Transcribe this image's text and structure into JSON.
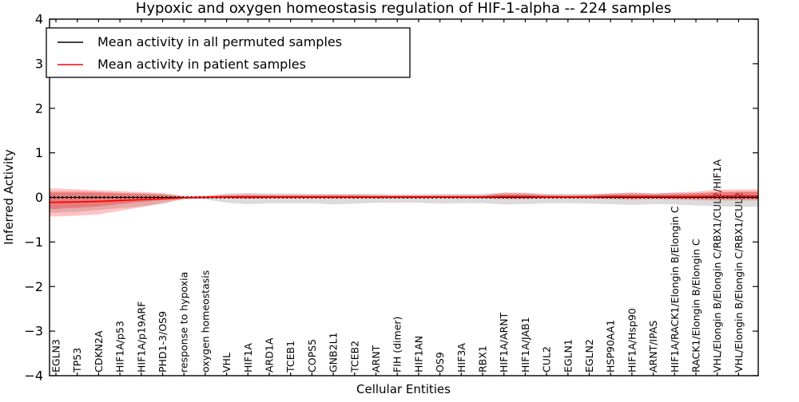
{
  "chart_data": {
    "type": "line",
    "title": "Hypoxic and oxygen homeostasis regulation of HIF-1-alpha -- 224 samples",
    "xlabel": "Cellular Entities",
    "ylabel": "Inferred Activity",
    "ylim": [
      -4,
      4
    ],
    "yticks": [
      4,
      3,
      2,
      1,
      0,
      -1,
      -2,
      -3,
      -4
    ],
    "ytick_labels": [
      "4",
      "3",
      "2",
      "1",
      "0",
      "−1",
      "−2",
      "−3",
      "−4"
    ],
    "legend_position": "upper left",
    "grid": false,
    "categories": [
      "EGLN3",
      "TP53",
      "CDKN2A",
      "HIF1A/p53",
      "HIF1A/p19ARF",
      "PHD1-3/OS9",
      "response to hypoxia",
      "oxygen homeostasis",
      "VHL",
      "HIF1A",
      "ARD1A",
      "TCEB1",
      "COPS5",
      "GNB2L1",
      "TCEB2",
      "ARNT",
      "FIH (dimer)",
      "HIF1AN",
      "OS9",
      "HIF3A",
      "RBX1",
      "HIF1A/ARNT",
      "HIF1A/JAB1",
      "CUL2",
      "EGLN1",
      "EGLN2",
      "HSP90AA1",
      "HIF1A/Hsp90",
      "ARNT/IPAS",
      "HIF1A/RACK1/Elongin B/Elongin C",
      "RACK1/Elongin B/Elongin C",
      "VHL/Elongin B/Elongin C/RBX1/CUL2/HIF1A",
      "VHL/Elongin B/Elongin C/RBX1/CUL2"
    ],
    "series": [
      {
        "name": "Mean activity in all permuted samples",
        "color": "#000000",
        "values": [
          0,
          0,
          0,
          0,
          0,
          0,
          0,
          0,
          0,
          0,
          0,
          0,
          0,
          0,
          0,
          0,
          0,
          0,
          0,
          0,
          0,
          0,
          0,
          0,
          0,
          0,
          0,
          0,
          0,
          0,
          0,
          0,
          0
        ]
      },
      {
        "name": "Mean activity in patient samples",
        "color": "#ff0000",
        "values": [
          -0.11,
          -0.1,
          -0.09,
          -0.07,
          -0.05,
          -0.03,
          -0.01,
          0.0,
          0.01,
          0.01,
          0.01,
          0.01,
          0.01,
          0.01,
          0.01,
          0.01,
          0.01,
          0.01,
          0.01,
          0.01,
          0.01,
          0.02,
          0.02,
          0.01,
          0.01,
          0.01,
          0.02,
          0.02,
          0.02,
          0.02,
          0.02,
          0.03,
          0.03
        ]
      }
    ],
    "bands": [
      {
        "name": "permuted-samples-spread",
        "color": "rgba(127,127,127,0.28)",
        "upper": [
          0.1,
          0.1,
          0.1,
          0.09,
          0.09,
          0.08,
          0.02,
          0.03,
          0.09,
          0.1,
          0.09,
          0.09,
          0.08,
          0.08,
          0.08,
          0.08,
          0.07,
          0.07,
          0.08,
          0.08,
          0.08,
          0.1,
          0.1,
          0.08,
          0.08,
          0.08,
          0.09,
          0.1,
          0.09,
          0.1,
          0.1,
          0.11,
          0.12
        ],
        "lower": [
          -0.34,
          -0.32,
          -0.28,
          -0.24,
          -0.2,
          -0.15,
          -0.03,
          -0.04,
          -0.12,
          -0.15,
          -0.13,
          -0.13,
          -0.13,
          -0.16,
          -0.14,
          -0.12,
          -0.12,
          -0.12,
          -0.14,
          -0.13,
          -0.13,
          -0.16,
          -0.15,
          -0.13,
          -0.13,
          -0.14,
          -0.15,
          -0.17,
          -0.15,
          -0.16,
          -0.18,
          -0.2,
          -0.21
        ]
      },
      {
        "name": "patient-samples-spread-outer",
        "color": "rgba(255,38,38,0.28)",
        "upper": [
          0.2,
          0.18,
          0.16,
          0.14,
          0.12,
          0.1,
          0.03,
          0.03,
          0.06,
          0.07,
          0.06,
          0.06,
          0.06,
          0.06,
          0.06,
          0.05,
          0.05,
          0.05,
          0.05,
          0.05,
          0.05,
          0.11,
          0.1,
          0.06,
          0.05,
          0.06,
          0.09,
          0.11,
          0.09,
          0.11,
          0.13,
          0.17,
          0.18
        ],
        "lower": [
          -0.43,
          -0.41,
          -0.38,
          -0.3,
          -0.22,
          -0.12,
          -0.03,
          -0.02,
          -0.02,
          -0.03,
          -0.02,
          -0.02,
          -0.02,
          -0.02,
          -0.02,
          -0.02,
          -0.02,
          -0.02,
          -0.02,
          -0.02,
          -0.02,
          -0.04,
          -0.04,
          -0.02,
          -0.02,
          -0.02,
          -0.04,
          -0.05,
          -0.04,
          -0.05,
          -0.06,
          -0.07,
          -0.07
        ]
      },
      {
        "name": "patient-samples-spread-inner",
        "color": "rgba(230,20,20,0.30)",
        "upper": [
          0.13,
          0.13,
          0.12,
          0.1,
          0.08,
          0.06,
          0.02,
          0.02,
          0.04,
          0.05,
          0.04,
          0.04,
          0.04,
          0.04,
          0.04,
          0.03,
          0.03,
          0.03,
          0.03,
          0.03,
          0.03,
          0.07,
          0.06,
          0.04,
          0.03,
          0.04,
          0.06,
          0.07,
          0.06,
          0.07,
          0.09,
          0.12,
          0.13
        ],
        "lower": [
          -0.26,
          -0.23,
          -0.2,
          -0.15,
          -0.1,
          -0.06,
          -0.02,
          -0.01,
          -0.01,
          -0.02,
          -0.01,
          -0.01,
          -0.01,
          -0.01,
          -0.01,
          -0.01,
          -0.01,
          -0.01,
          -0.01,
          -0.01,
          -0.01,
          -0.02,
          -0.02,
          -0.01,
          -0.01,
          -0.01,
          -0.02,
          -0.03,
          -0.02,
          -0.03,
          -0.03,
          -0.04,
          -0.04
        ]
      }
    ],
    "colors": {
      "permuted_line": "#000000",
      "patient_line": "#ff0000",
      "permuted_band": "rgba(127,127,127,0.28)",
      "patient_band": "rgba(255,38,38,0.28)",
      "spine": "#000000",
      "background": "#ffffff"
    }
  }
}
